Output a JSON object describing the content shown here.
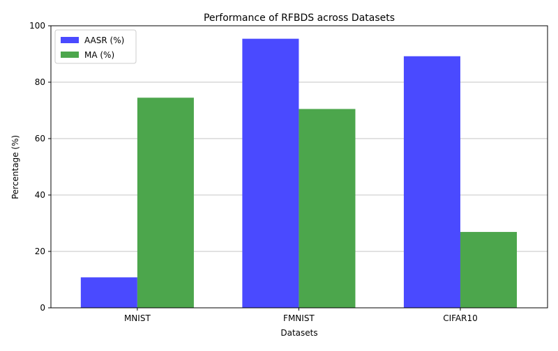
{
  "chart_data": {
    "type": "bar",
    "title": "Performance of RFBDS across Datasets",
    "xlabel": "Datasets",
    "ylabel": "Percentage (%)",
    "categories": [
      "MNIST",
      "FMNIST",
      "CIFAR10"
    ],
    "series": [
      {
        "name": "AASR (%)",
        "values": [
          10.8,
          95.4,
          89.2
        ],
        "color": "#4a4aff"
      },
      {
        "name": "MA (%)",
        "values": [
          74.5,
          70.5,
          26.9
        ],
        "color": "#4ca64c"
      }
    ],
    "ylim": [
      0,
      100
    ],
    "yticks": [
      0,
      20,
      40,
      60,
      80,
      100
    ],
    "grid": "y",
    "legend_position": "upper-left"
  }
}
